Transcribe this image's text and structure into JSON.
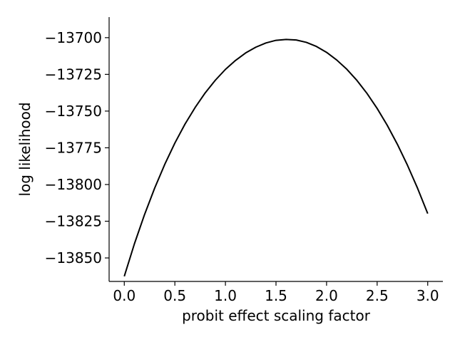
{
  "chart_data": {
    "type": "line",
    "title": "",
    "xlabel": "probit effect scaling factor",
    "ylabel": "log likelihood",
    "xlim": [
      -0.15,
      3.15
    ],
    "ylim": [
      -13866,
      -13686
    ],
    "grid": false,
    "x_ticks": [
      0.0,
      0.5,
      1.0,
      1.5,
      2.0,
      2.5,
      3.0
    ],
    "x_tick_labels": [
      "0.0",
      "0.5",
      "1.0",
      "1.5",
      "2.0",
      "2.5",
      "3.0"
    ],
    "y_ticks": [
      -13700,
      -13725,
      -13750,
      -13775,
      -13800,
      -13825,
      -13850
    ],
    "y_tick_labels": [
      "−13700",
      "−13725",
      "−13750",
      "−13775",
      "−13800",
      "−13825",
      "−13850"
    ],
    "series": [
      {
        "color": "#000000",
        "x": [
          0.0,
          0.1,
          0.2,
          0.3,
          0.4,
          0.5,
          0.6,
          0.7,
          0.8,
          0.9,
          1.0,
          1.1,
          1.2,
          1.3,
          1.4,
          1.5,
          1.6,
          1.7,
          1.8,
          1.9,
          2.0,
          2.1,
          2.2,
          2.3,
          2.4,
          2.5,
          2.6,
          2.7,
          2.8,
          2.9,
          3.0
        ],
        "y": [
          -13862.5,
          -13840.4,
          -13820.5,
          -13802.5,
          -13786.3,
          -13771.8,
          -13758.9,
          -13747.6,
          -13737.6,
          -13729.0,
          -13721.6,
          -13715.5,
          -13710.4,
          -13706.5,
          -13703.6,
          -13701.8,
          -13701.2,
          -13701.6,
          -13703.2,
          -13706.0,
          -13710.0,
          -13715.2,
          -13721.5,
          -13729.1,
          -13738.0,
          -13748.2,
          -13759.7,
          -13772.6,
          -13786.9,
          -13802.6,
          -13819.8
        ]
      }
    ]
  }
}
